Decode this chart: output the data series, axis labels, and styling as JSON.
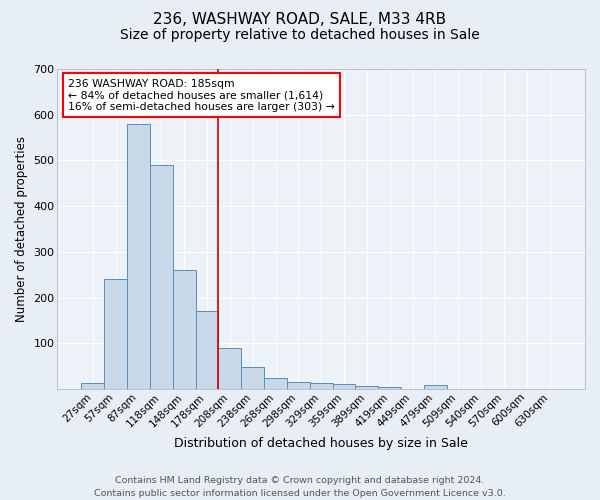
{
  "title_line1": "236, WASHWAY ROAD, SALE, M33 4RB",
  "title_line2": "Size of property relative to detached houses in Sale",
  "xlabel": "Distribution of detached houses by size in Sale",
  "ylabel": "Number of detached properties",
  "footnote": "Contains HM Land Registry data © Crown copyright and database right 2024.\nContains public sector information licensed under the Open Government Licence v3.0.",
  "bar_labels": [
    "27sqm",
    "57sqm",
    "87sqm",
    "118sqm",
    "148sqm",
    "178sqm",
    "208sqm",
    "238sqm",
    "268sqm",
    "298sqm",
    "329sqm",
    "359sqm",
    "389sqm",
    "419sqm",
    "449sqm",
    "479sqm",
    "509sqm",
    "540sqm",
    "570sqm",
    "600sqm",
    "630sqm"
  ],
  "bar_heights": [
    13,
    240,
    580,
    490,
    260,
    170,
    90,
    48,
    25,
    15,
    13,
    10,
    7,
    5,
    0,
    8,
    0,
    0,
    0,
    0,
    0
  ],
  "bar_color": "#c8d8e8",
  "bar_edge_color": "#5b8db8",
  "red_line_x": 5.5,
  "annotation_text": "236 WASHWAY ROAD: 185sqm\n← 84% of detached houses are smaller (1,614)\n16% of semi-detached houses are larger (303) →",
  "annotation_box_color": "white",
  "annotation_box_edge_color": "red",
  "ylim": [
    0,
    700
  ],
  "yticks": [
    0,
    100,
    200,
    300,
    400,
    500,
    600,
    700
  ],
  "bg_color": "#e8eef5",
  "plot_bg_color": "#edf2f8",
  "grid_color": "white",
  "red_line_color": "#cc0000",
  "title1_fontsize": 11,
  "title2_fontsize": 10,
  "ylabel_fontsize": 8.5,
  "xlabel_fontsize": 9,
  "tick_fontsize": 7.5,
  "footnote_fontsize": 6.8,
  "annot_fontsize": 7.8
}
